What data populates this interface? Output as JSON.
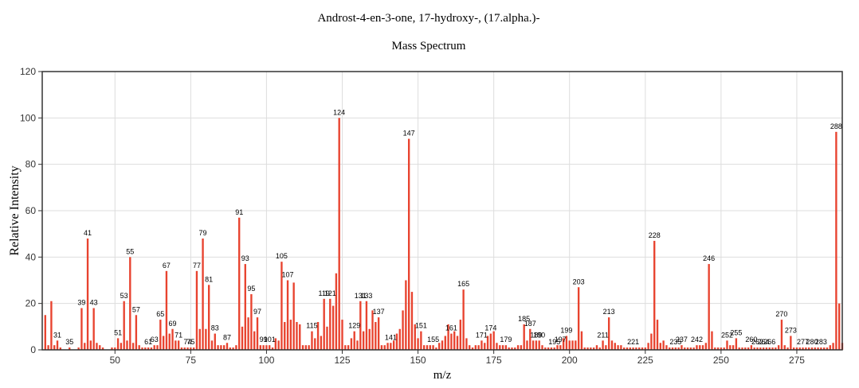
{
  "chart_data": {
    "type": "bar",
    "title": "Androst-4-en-3-one, 17-hydroxy-, (17.alpha.)-",
    "subtitle": "Mass Spectrum",
    "xlabel": "m/z",
    "ylabel": "Relative Intensity",
    "xlim": [
      26,
      290
    ],
    "ylim": [
      0,
      120
    ],
    "x_ticks": [
      "50",
      "75",
      "100",
      "125",
      "150",
      "175",
      "200",
      "225",
      "250",
      "275"
    ],
    "y_ticks": [
      "0",
      "20",
      "40",
      "60",
      "80",
      "100",
      "120"
    ],
    "grid": true,
    "bar_color": "#e8432f",
    "peaks": [
      {
        "x": 27,
        "y": 15
      },
      {
        "x": 28,
        "y": 2
      },
      {
        "x": 29,
        "y": 21
      },
      {
        "x": 30,
        "y": 2
      },
      {
        "x": 31,
        "y": 4,
        "label": "31"
      },
      {
        "x": 32,
        "y": 1
      },
      {
        "x": 35,
        "y": 1,
        "label": "35"
      },
      {
        "x": 38,
        "y": 1
      },
      {
        "x": 39,
        "y": 18,
        "label": "39"
      },
      {
        "x": 40,
        "y": 3
      },
      {
        "x": 41,
        "y": 48,
        "label": "41"
      },
      {
        "x": 42,
        "y": 4
      },
      {
        "x": 43,
        "y": 18,
        "label": "43"
      },
      {
        "x": 44,
        "y": 3
      },
      {
        "x": 45,
        "y": 2
      },
      {
        "x": 46,
        "y": 1
      },
      {
        "x": 49,
        "y": 1
      },
      {
        "x": 50,
        "y": 1
      },
      {
        "x": 51,
        "y": 5,
        "label": "51"
      },
      {
        "x": 52,
        "y": 3
      },
      {
        "x": 53,
        "y": 21,
        "label": "53"
      },
      {
        "x": 54,
        "y": 4
      },
      {
        "x": 55,
        "y": 40,
        "label": "55"
      },
      {
        "x": 56,
        "y": 3
      },
      {
        "x": 57,
        "y": 15,
        "label": "57"
      },
      {
        "x": 58,
        "y": 2
      },
      {
        "x": 59,
        "y": 1
      },
      {
        "x": 60,
        "y": 1
      },
      {
        "x": 61,
        "y": 1,
        "label": "61"
      },
      {
        "x": 62,
        "y": 1
      },
      {
        "x": 63,
        "y": 2,
        "label": "63"
      },
      {
        "x": 64,
        "y": 2
      },
      {
        "x": 65,
        "y": 13,
        "label": "65"
      },
      {
        "x": 66,
        "y": 6
      },
      {
        "x": 67,
        "y": 34,
        "label": "67"
      },
      {
        "x": 68,
        "y": 7
      },
      {
        "x": 69,
        "y": 9,
        "label": "69"
      },
      {
        "x": 70,
        "y": 4
      },
      {
        "x": 71,
        "y": 4,
        "label": "71"
      },
      {
        "x": 72,
        "y": 1
      },
      {
        "x": 73,
        "y": 1
      },
      {
        "x": 74,
        "y": 1,
        "label": "74"
      },
      {
        "x": 75,
        "y": 1,
        "label": "75"
      },
      {
        "x": 76,
        "y": 1
      },
      {
        "x": 77,
        "y": 34,
        "label": "77"
      },
      {
        "x": 78,
        "y": 9
      },
      {
        "x": 79,
        "y": 48,
        "label": "79"
      },
      {
        "x": 80,
        "y": 9
      },
      {
        "x": 81,
        "y": 28,
        "label": "81"
      },
      {
        "x": 82,
        "y": 4
      },
      {
        "x": 83,
        "y": 7,
        "label": "83"
      },
      {
        "x": 84,
        "y": 2
      },
      {
        "x": 85,
        "y": 2
      },
      {
        "x": 86,
        "y": 2
      },
      {
        "x": 87,
        "y": 3,
        "label": "87"
      },
      {
        "x": 88,
        "y": 1
      },
      {
        "x": 89,
        "y": 1
      },
      {
        "x": 90,
        "y": 2
      },
      {
        "x": 91,
        "y": 57,
        "label": "91"
      },
      {
        "x": 92,
        "y": 10
      },
      {
        "x": 93,
        "y": 37,
        "label": "93"
      },
      {
        "x": 94,
        "y": 14
      },
      {
        "x": 95,
        "y": 24,
        "label": "95"
      },
      {
        "x": 96,
        "y": 8
      },
      {
        "x": 97,
        "y": 14,
        "label": "97"
      },
      {
        "x": 98,
        "y": 2
      },
      {
        "x": 99,
        "y": 2,
        "label": "99"
      },
      {
        "x": 100,
        "y": 2
      },
      {
        "x": 101,
        "y": 2,
        "label": "101"
      },
      {
        "x": 102,
        "y": 1
      },
      {
        "x": 103,
        "y": 5
      },
      {
        "x": 104,
        "y": 4
      },
      {
        "x": 105,
        "y": 38,
        "label": "105"
      },
      {
        "x": 106,
        "y": 12
      },
      {
        "x": 107,
        "y": 30,
        "label": "107"
      },
      {
        "x": 108,
        "y": 13
      },
      {
        "x": 109,
        "y": 29
      },
      {
        "x": 110,
        "y": 12
      },
      {
        "x": 111,
        "y": 11
      },
      {
        "x": 112,
        "y": 2
      },
      {
        "x": 113,
        "y": 2
      },
      {
        "x": 114,
        "y": 2
      },
      {
        "x": 115,
        "y": 8,
        "label": "115"
      },
      {
        "x": 116,
        "y": 5
      },
      {
        "x": 117,
        "y": 12
      },
      {
        "x": 118,
        "y": 6
      },
      {
        "x": 119,
        "y": 22,
        "label": "119"
      },
      {
        "x": 120,
        "y": 10
      },
      {
        "x": 121,
        "y": 22,
        "label": "121"
      },
      {
        "x": 122,
        "y": 19
      },
      {
        "x": 123,
        "y": 33
      },
      {
        "x": 124,
        "y": 100,
        "label": "124"
      },
      {
        "x": 125,
        "y": 13
      },
      {
        "x": 126,
        "y": 2
      },
      {
        "x": 127,
        "y": 2
      },
      {
        "x": 128,
        "y": 5
      },
      {
        "x": 129,
        "y": 8,
        "label": "129"
      },
      {
        "x": 130,
        "y": 4
      },
      {
        "x": 131,
        "y": 21,
        "label": "131"
      },
      {
        "x": 132,
        "y": 8
      },
      {
        "x": 133,
        "y": 21,
        "label": "133"
      },
      {
        "x": 134,
        "y": 9
      },
      {
        "x": 135,
        "y": 17
      },
      {
        "x": 136,
        "y": 12
      },
      {
        "x": 137,
        "y": 14,
        "label": "137"
      },
      {
        "x": 138,
        "y": 2
      },
      {
        "x": 139,
        "y": 2
      },
      {
        "x": 140,
        "y": 3
      },
      {
        "x": 141,
        "y": 3,
        "label": "141"
      },
      {
        "x": 142,
        "y": 4
      },
      {
        "x": 143,
        "y": 7
      },
      {
        "x": 144,
        "y": 9
      },
      {
        "x": 145,
        "y": 17
      },
      {
        "x": 146,
        "y": 30
      },
      {
        "x": 147,
        "y": 91,
        "label": "147"
      },
      {
        "x": 148,
        "y": 25
      },
      {
        "x": 149,
        "y": 11
      },
      {
        "x": 150,
        "y": 5
      },
      {
        "x": 151,
        "y": 8,
        "label": "151"
      },
      {
        "x": 152,
        "y": 2
      },
      {
        "x": 153,
        "y": 2
      },
      {
        "x": 154,
        "y": 2
      },
      {
        "x": 155,
        "y": 2,
        "label": "155"
      },
      {
        "x": 156,
        "y": 1
      },
      {
        "x": 157,
        "y": 3
      },
      {
        "x": 158,
        "y": 4
      },
      {
        "x": 159,
        "y": 6
      },
      {
        "x": 160,
        "y": 11
      },
      {
        "x": 161,
        "y": 7,
        "label": "161"
      },
      {
        "x": 162,
        "y": 8
      },
      {
        "x": 163,
        "y": 6
      },
      {
        "x": 164,
        "y": 13
      },
      {
        "x": 165,
        "y": 26,
        "label": "165"
      },
      {
        "x": 166,
        "y": 5
      },
      {
        "x": 167,
        "y": 2
      },
      {
        "x": 168,
        "y": 1
      },
      {
        "x": 169,
        "y": 2
      },
      {
        "x": 170,
        "y": 2
      },
      {
        "x": 171,
        "y": 4,
        "label": "171"
      },
      {
        "x": 172,
        "y": 3
      },
      {
        "x": 173,
        "y": 6
      },
      {
        "x": 174,
        "y": 7,
        "label": "174"
      },
      {
        "x": 175,
        "y": 8
      },
      {
        "x": 176,
        "y": 3
      },
      {
        "x": 177,
        "y": 2
      },
      {
        "x": 178,
        "y": 2
      },
      {
        "x": 179,
        "y": 2,
        "label": "179"
      },
      {
        "x": 180,
        "y": 1
      },
      {
        "x": 181,
        "y": 1
      },
      {
        "x": 182,
        "y": 1
      },
      {
        "x": 183,
        "y": 2
      },
      {
        "x": 184,
        "y": 2
      },
      {
        "x": 185,
        "y": 11,
        "label": "185"
      },
      {
        "x": 186,
        "y": 4
      },
      {
        "x": 187,
        "y": 9,
        "label": "187"
      },
      {
        "x": 188,
        "y": 4
      },
      {
        "x": 189,
        "y": 4,
        "label": "189"
      },
      {
        "x": 190,
        "y": 4,
        "label": "190"
      },
      {
        "x": 191,
        "y": 2
      },
      {
        "x": 192,
        "y": 1
      },
      {
        "x": 193,
        "y": 1
      },
      {
        "x": 194,
        "y": 1
      },
      {
        "x": 195,
        "y": 1,
        "label": "195"
      },
      {
        "x": 196,
        "y": 2
      },
      {
        "x": 197,
        "y": 2,
        "label": "197"
      },
      {
        "x": 198,
        "y": 5
      },
      {
        "x": 199,
        "y": 6,
        "label": "199"
      },
      {
        "x": 200,
        "y": 4
      },
      {
        "x": 201,
        "y": 4
      },
      {
        "x": 202,
        "y": 4
      },
      {
        "x": 203,
        "y": 27,
        "label": "203"
      },
      {
        "x": 204,
        "y": 8
      },
      {
        "x": 205,
        "y": 1
      },
      {
        "x": 206,
        "y": 1
      },
      {
        "x": 207,
        "y": 1
      },
      {
        "x": 208,
        "y": 1
      },
      {
        "x": 209,
        "y": 2
      },
      {
        "x": 210,
        "y": 1
      },
      {
        "x": 211,
        "y": 4,
        "label": "211"
      },
      {
        "x": 212,
        "y": 2
      },
      {
        "x": 213,
        "y": 14,
        "label": "213"
      },
      {
        "x": 214,
        "y": 4
      },
      {
        "x": 215,
        "y": 3
      },
      {
        "x": 216,
        "y": 2
      },
      {
        "x": 217,
        "y": 2
      },
      {
        "x": 218,
        "y": 1
      },
      {
        "x": 219,
        "y": 1
      },
      {
        "x": 220,
        "y": 1
      },
      {
        "x": 221,
        "y": 1,
        "label": "221"
      },
      {
        "x": 222,
        "y": 1
      },
      {
        "x": 223,
        "y": 1
      },
      {
        "x": 224,
        "y": 1
      },
      {
        "x": 225,
        "y": 1
      },
      {
        "x": 226,
        "y": 3
      },
      {
        "x": 227,
        "y": 7
      },
      {
        "x": 228,
        "y": 47,
        "label": "228"
      },
      {
        "x": 229,
        "y": 13
      },
      {
        "x": 230,
        "y": 3
      },
      {
        "x": 231,
        "y": 4
      },
      {
        "x": 232,
        "y": 2
      },
      {
        "x": 233,
        "y": 1
      },
      {
        "x": 234,
        "y": 1
      },
      {
        "x": 235,
        "y": 1,
        "label": "235"
      },
      {
        "x": 236,
        "y": 1
      },
      {
        "x": 237,
        "y": 2,
        "label": "237"
      },
      {
        "x": 238,
        "y": 1
      },
      {
        "x": 239,
        "y": 1
      },
      {
        "x": 240,
        "y": 1
      },
      {
        "x": 241,
        "y": 1
      },
      {
        "x": 242,
        "y": 2,
        "label": "242"
      },
      {
        "x": 243,
        "y": 2
      },
      {
        "x": 244,
        "y": 2
      },
      {
        "x": 245,
        "y": 3
      },
      {
        "x": 246,
        "y": 37,
        "label": "246"
      },
      {
        "x": 247,
        "y": 8
      },
      {
        "x": 248,
        "y": 1
      },
      {
        "x": 249,
        "y": 1
      },
      {
        "x": 250,
        "y": 1
      },
      {
        "x": 251,
        "y": 1
      },
      {
        "x": 252,
        "y": 4,
        "label": "252"
      },
      {
        "x": 253,
        "y": 2
      },
      {
        "x": 254,
        "y": 2
      },
      {
        "x": 255,
        "y": 5,
        "label": "255"
      },
      {
        "x": 256,
        "y": 1
      },
      {
        "x": 257,
        "y": 1
      },
      {
        "x": 258,
        "y": 1
      },
      {
        "x": 259,
        "y": 1
      },
      {
        "x": 260,
        "y": 2,
        "label": "260"
      },
      {
        "x": 261,
        "y": 1
      },
      {
        "x": 262,
        "y": 1,
        "label": "262"
      },
      {
        "x": 263,
        "y": 1
      },
      {
        "x": 264,
        "y": 1,
        "label": "264"
      },
      {
        "x": 265,
        "y": 1
      },
      {
        "x": 266,
        "y": 1,
        "label": "266"
      },
      {
        "x": 267,
        "y": 1
      },
      {
        "x": 268,
        "y": 1
      },
      {
        "x": 269,
        "y": 2
      },
      {
        "x": 270,
        "y": 13,
        "label": "270"
      },
      {
        "x": 271,
        "y": 2
      },
      {
        "x": 272,
        "y": 1
      },
      {
        "x": 273,
        "y": 6,
        "label": "273"
      },
      {
        "x": 274,
        "y": 1
      },
      {
        "x": 275,
        "y": 1
      },
      {
        "x": 276,
        "y": 1
      },
      {
        "x": 277,
        "y": 1,
        "label": "277"
      },
      {
        "x": 278,
        "y": 1
      },
      {
        "x": 279,
        "y": 1
      },
      {
        "x": 280,
        "y": 1,
        "label": "280"
      },
      {
        "x": 281,
        "y": 1
      },
      {
        "x": 282,
        "y": 1
      },
      {
        "x": 283,
        "y": 1,
        "label": "283"
      },
      {
        "x": 284,
        "y": 1
      },
      {
        "x": 285,
        "y": 1
      },
      {
        "x": 286,
        "y": 2
      },
      {
        "x": 287,
        "y": 3
      },
      {
        "x": 288,
        "y": 94,
        "label": "288"
      },
      {
        "x": 289,
        "y": 20
      },
      {
        "x": 290,
        "y": 3
      }
    ]
  }
}
